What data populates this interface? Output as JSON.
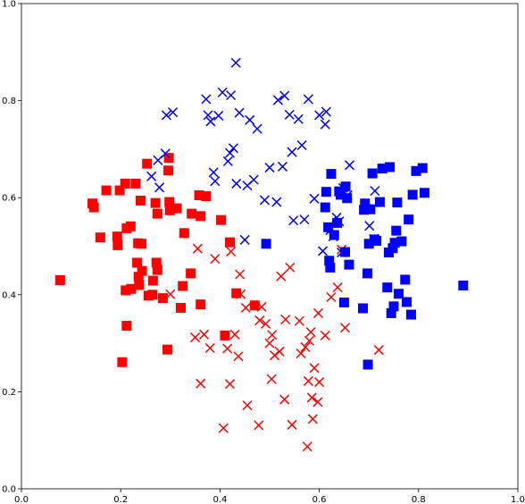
{
  "chart_data": {
    "type": "scatter",
    "title": "",
    "xlabel": "",
    "ylabel": "",
    "xlim": [
      0.0,
      1.0
    ],
    "ylim": [
      0.0,
      1.0
    ],
    "grid": false,
    "legend": "none",
    "xticks": [
      "0.0",
      "0.2",
      "0.4",
      "0.6",
      "0.8",
      "1.0"
    ],
    "yticks": [
      "0.0",
      "0.2",
      "0.4",
      "0.6",
      "0.8",
      "1.0"
    ],
    "series": [
      {
        "marker": "square",
        "color": "#ff0000",
        "points": [
          [
            0.078,
            0.43
          ],
          [
            0.143,
            0.588
          ],
          [
            0.146,
            0.58
          ],
          [
            0.159,
            0.518
          ],
          [
            0.171,
            0.615
          ],
          [
            0.193,
            0.52
          ],
          [
            0.194,
            0.502
          ],
          [
            0.198,
            0.615
          ],
          [
            0.203,
            0.261
          ],
          [
            0.209,
            0.629
          ],
          [
            0.21,
            0.409
          ],
          [
            0.212,
            0.537
          ],
          [
            0.212,
            0.336
          ],
          [
            0.22,
            0.541
          ],
          [
            0.221,
            0.412
          ],
          [
            0.23,
            0.629
          ],
          [
            0.233,
            0.466
          ],
          [
            0.235,
            0.506
          ],
          [
            0.236,
            0.437
          ],
          [
            0.237,
            0.42
          ],
          [
            0.24,
            0.594
          ],
          [
            0.242,
            0.505
          ],
          [
            0.243,
            0.449
          ],
          [
            0.253,
            0.67
          ],
          [
            0.256,
            0.398
          ],
          [
            0.264,
            0.4
          ],
          [
            0.265,
            0.429
          ],
          [
            0.27,
            0.589
          ],
          [
            0.272,
            0.466
          ],
          [
            0.274,
            0.567
          ],
          [
            0.274,
            0.451
          ],
          [
            0.285,
            0.393
          ],
          [
            0.294,
            0.287
          ],
          [
            0.296,
            0.656
          ],
          [
            0.297,
            0.682
          ],
          [
            0.298,
            0.591
          ],
          [
            0.299,
            0.574
          ],
          [
            0.313,
            0.578
          ],
          [
            0.321,
            0.373
          ],
          [
            0.325,
            0.418
          ],
          [
            0.328,
            0.527
          ],
          [
            0.341,
            0.444
          ],
          [
            0.343,
            0.567
          ],
          [
            0.358,
            0.605
          ],
          [
            0.361,
            0.38
          ],
          [
            0.361,
            0.562
          ],
          [
            0.372,
            0.603
          ],
          [
            0.402,
            0.554
          ],
          [
            0.41,
            0.316
          ],
          [
            0.42,
            0.508
          ],
          [
            0.433,
            0.403
          ],
          [
            0.47,
            0.378
          ]
        ]
      },
      {
        "marker": "x",
        "color": "#ff0000",
        "points": [
          [
            0.3,
            0.401
          ],
          [
            0.35,
            0.312
          ],
          [
            0.355,
            0.495
          ],
          [
            0.361,
            0.217
          ],
          [
            0.368,
            0.318
          ],
          [
            0.38,
            0.29
          ],
          [
            0.39,
            0.474
          ],
          [
            0.407,
            0.125
          ],
          [
            0.415,
            0.289
          ],
          [
            0.42,
            0.216
          ],
          [
            0.422,
            0.489
          ],
          [
            0.43,
            0.318
          ],
          [
            0.437,
            0.273
          ],
          [
            0.44,
            0.442
          ],
          [
            0.442,
            0.401
          ],
          [
            0.452,
            0.373
          ],
          [
            0.455,
            0.172
          ],
          [
            0.478,
            0.131
          ],
          [
            0.48,
            0.347
          ],
          [
            0.484,
            0.375
          ],
          [
            0.492,
            0.34
          ],
          [
            0.5,
            0.3
          ],
          [
            0.504,
            0.226
          ],
          [
            0.505,
            0.317
          ],
          [
            0.51,
            0.275
          ],
          [
            0.52,
            0.283
          ],
          [
            0.523,
            0.438
          ],
          [
            0.53,
            0.184
          ],
          [
            0.532,
            0.349
          ],
          [
            0.541,
            0.456
          ],
          [
            0.545,
            0.132
          ],
          [
            0.56,
            0.346
          ],
          [
            0.563,
            0.279
          ],
          [
            0.572,
            0.292
          ],
          [
            0.576,
            0.087
          ],
          [
            0.578,
            0.222
          ],
          [
            0.58,
            0.305
          ],
          [
            0.583,
            0.323
          ],
          [
            0.585,
            0.188
          ],
          [
            0.587,
            0.144
          ],
          [
            0.59,
            0.249
          ],
          [
            0.597,
            0.179
          ],
          [
            0.598,
            0.362
          ],
          [
            0.6,
            0.22
          ],
          [
            0.612,
            0.316
          ],
          [
            0.624,
            0.395
          ],
          [
            0.637,
            0.415
          ],
          [
            0.645,
            0.493
          ],
          [
            0.652,
            0.332
          ],
          [
            0.72,
            0.286
          ]
        ]
      },
      {
        "marker": "x",
        "color": "#0000ff",
        "points": [
          [
            0.262,
            0.644
          ],
          [
            0.275,
            0.677
          ],
          [
            0.278,
            0.621
          ],
          [
            0.29,
            0.691
          ],
          [
            0.292,
            0.77
          ],
          [
            0.305,
            0.776
          ],
          [
            0.372,
            0.803
          ],
          [
            0.376,
            0.77
          ],
          [
            0.381,
            0.757
          ],
          [
            0.387,
            0.652
          ],
          [
            0.39,
            0.634
          ],
          [
            0.397,
            0.769
          ],
          [
            0.405,
            0.817
          ],
          [
            0.416,
            0.675
          ],
          [
            0.42,
            0.692
          ],
          [
            0.422,
            0.811
          ],
          [
            0.427,
            0.702
          ],
          [
            0.432,
            0.878
          ],
          [
            0.433,
            0.629
          ],
          [
            0.439,
            0.775
          ],
          [
            0.45,
            0.513
          ],
          [
            0.455,
            0.625
          ],
          [
            0.46,
            0.76
          ],
          [
            0.468,
            0.637
          ],
          [
            0.475,
            0.742
          ],
          [
            0.49,
            0.595
          ],
          [
            0.5,
            0.662
          ],
          [
            0.514,
            0.591
          ],
          [
            0.517,
            0.801
          ],
          [
            0.526,
            0.664
          ],
          [
            0.53,
            0.81
          ],
          [
            0.54,
            0.771
          ],
          [
            0.545,
            0.694
          ],
          [
            0.548,
            0.553
          ],
          [
            0.558,
            0.762
          ],
          [
            0.565,
            0.708
          ],
          [
            0.57,
            0.555
          ],
          [
            0.578,
            0.803
          ],
          [
            0.59,
            0.598
          ],
          [
            0.6,
            0.77
          ],
          [
            0.607,
            0.49
          ],
          [
            0.612,
            0.751
          ],
          [
            0.614,
            0.777
          ],
          [
            0.622,
            0.533
          ],
          [
            0.628,
            0.52
          ],
          [
            0.635,
            0.559
          ],
          [
            0.64,
            0.551
          ],
          [
            0.645,
            0.487
          ],
          [
            0.648,
            0.62
          ],
          [
            0.657,
            0.605
          ],
          [
            0.661,
            0.667
          ],
          [
            0.695,
            0.577
          ],
          [
            0.701,
            0.542
          ],
          [
            0.71,
            0.515
          ],
          [
            0.712,
            0.614
          ]
        ]
      },
      {
        "marker": "square",
        "color": "#0000ff",
        "points": [
          [
            0.493,
            0.505
          ],
          [
            0.612,
            0.58
          ],
          [
            0.614,
            0.612
          ],
          [
            0.618,
            0.539
          ],
          [
            0.62,
            0.47
          ],
          [
            0.622,
            0.456
          ],
          [
            0.624,
            0.649
          ],
          [
            0.63,
            0.523
          ],
          [
            0.636,
            0.548
          ],
          [
            0.64,
            0.613
          ],
          [
            0.643,
            0.606
          ],
          [
            0.65,
            0.384
          ],
          [
            0.652,
            0.488
          ],
          [
            0.653,
            0.623
          ],
          [
            0.656,
            0.599
          ],
          [
            0.66,
            0.462
          ],
          [
            0.688,
            0.372
          ],
          [
            0.69,
            0.575
          ],
          [
            0.692,
            0.588
          ],
          [
            0.697,
            0.444
          ],
          [
            0.698,
            0.256
          ],
          [
            0.7,
            0.505
          ],
          [
            0.703,
            0.576
          ],
          [
            0.707,
            0.65
          ],
          [
            0.711,
            0.514
          ],
          [
            0.715,
            0.511
          ],
          [
            0.722,
            0.591
          ],
          [
            0.727,
            0.66
          ],
          [
            0.737,
            0.415
          ],
          [
            0.74,
            0.487
          ],
          [
            0.742,
            0.663
          ],
          [
            0.745,
            0.362
          ],
          [
            0.748,
            0.496
          ],
          [
            0.75,
            0.376
          ],
          [
            0.752,
            0.507
          ],
          [
            0.755,
            0.532
          ],
          [
            0.757,
            0.59
          ],
          [
            0.76,
            0.402
          ],
          [
            0.766,
            0.51
          ],
          [
            0.773,
            0.431
          ],
          [
            0.776,
            0.385
          ],
          [
            0.78,
            0.555
          ],
          [
            0.785,
            0.359
          ],
          [
            0.788,
            0.606
          ],
          [
            0.795,
            0.655
          ],
          [
            0.808,
            0.661
          ],
          [
            0.812,
            0.61
          ],
          [
            0.89,
            0.419
          ]
        ]
      }
    ]
  }
}
